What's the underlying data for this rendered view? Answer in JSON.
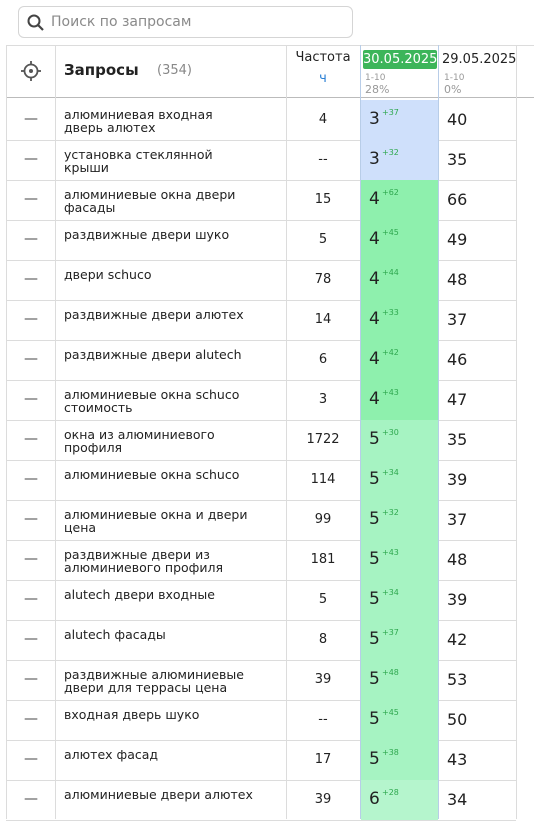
{
  "search": {
    "placeholder": "Поиск по запросам"
  },
  "header": {
    "queries_label": "Запросы",
    "count": "(354)",
    "frequency_label": "Частота",
    "frequency_sub": "ч",
    "dates": [
      {
        "date": "30.05.2025",
        "range": "1-10",
        "share": "28%"
      },
      {
        "date": "29.05.2025",
        "range": "1-10",
        "share": "0%"
      }
    ]
  },
  "rows": [
    {
      "query": "алюминиевая входная дверь алютех",
      "frequency": "4",
      "position": "3",
      "change": "+37",
      "prev": "40"
    },
    {
      "query": "установка стеклянной крыши",
      "frequency": "--",
      "position": "3",
      "change": "+32",
      "prev": "35"
    },
    {
      "query": "алюминиевые окна двери фасады",
      "frequency": "15",
      "position": "4",
      "change": "+62",
      "prev": "66"
    },
    {
      "query": "раздвижные двери шуко",
      "frequency": "5",
      "position": "4",
      "change": "+45",
      "prev": "49"
    },
    {
      "query": "двери schuco",
      "frequency": "78",
      "position": "4",
      "change": "+44",
      "prev": "48"
    },
    {
      "query": "раздвижные двери алютех",
      "frequency": "14",
      "position": "4",
      "change": "+33",
      "prev": "37"
    },
    {
      "query": "раздвижные двери alutech",
      "frequency": "6",
      "position": "4",
      "change": "+42",
      "prev": "46"
    },
    {
      "query": "алюминиевые окна schuco стоимость",
      "frequency": "3",
      "position": "4",
      "change": "+43",
      "prev": "47"
    },
    {
      "query": "окна из алюминиевого профиля",
      "frequency": "1722",
      "position": "5",
      "change": "+30",
      "prev": "35"
    },
    {
      "query": "алюминиевые окна schuco",
      "frequency": "114",
      "position": "5",
      "change": "+34",
      "prev": "39"
    },
    {
      "query": "алюминиевые окна и двери цена",
      "frequency": "99",
      "position": "5",
      "change": "+32",
      "prev": "37"
    },
    {
      "query": "раздвижные двери из алюминиевого профиля",
      "frequency": "181",
      "position": "5",
      "change": "+43",
      "prev": "48"
    },
    {
      "query": "alutech двери входные",
      "frequency": "5",
      "position": "5",
      "change": "+34",
      "prev": "39"
    },
    {
      "query": "alutech фасады",
      "frequency": "8",
      "position": "5",
      "change": "+37",
      "prev": "42"
    },
    {
      "query": "раздвижные алюминиевые двери для террасы цена",
      "frequency": "39",
      "position": "5",
      "change": "+48",
      "prev": "53"
    },
    {
      "query": "входная дверь шуко",
      "frequency": "--",
      "position": "5",
      "change": "+45",
      "prev": "50"
    },
    {
      "query": "алютех фасад",
      "frequency": "17",
      "position": "5",
      "change": "+38",
      "prev": "43"
    },
    {
      "query": "алюминиевые двери алютех",
      "frequency": "39",
      "position": "6",
      "change": "+28",
      "prev": "34"
    }
  ]
}
